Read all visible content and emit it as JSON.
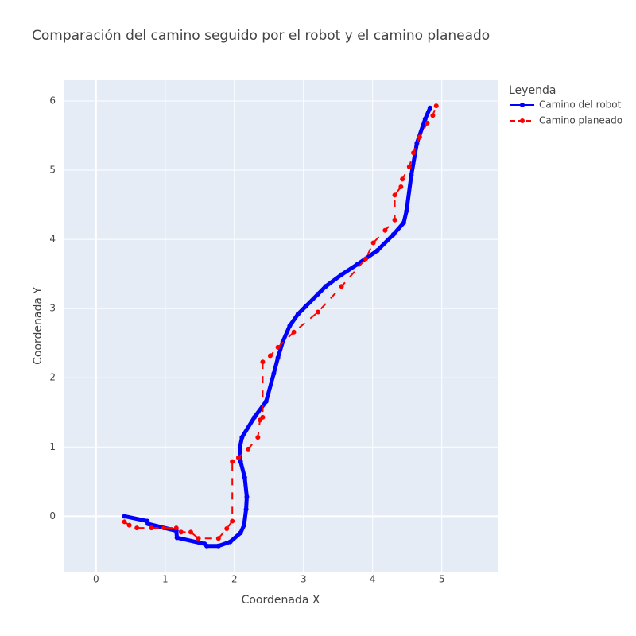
{
  "chart_data": {
    "type": "line",
    "title": "Comparación del camino seguido por el robot y el camino planeado",
    "x_label": "Coordenada X",
    "y_label": "Coordenada Y",
    "legend_title": "Leyenda",
    "legend_position": "right",
    "grid": true,
    "xlim": [
      -0.47,
      5.82
    ],
    "ylim": [
      -0.8,
      6.31
    ],
    "xticks": [
      0,
      1,
      2,
      3,
      4,
      5
    ],
    "yticks": [
      0,
      1,
      2,
      3,
      4,
      5,
      6
    ],
    "series": [
      {
        "name": "Camino del robot",
        "color": "#0000ff",
        "dash": "solid",
        "x": [
          0.41,
          0.74,
          0.75,
          1.16,
          1.17,
          1.57,
          1.6,
          1.77,
          1.94,
          2.09,
          2.14,
          2.17,
          2.18,
          2.15,
          2.09,
          2.08,
          2.11,
          2.29,
          2.46,
          2.57,
          2.63,
          2.7,
          2.8,
          2.92,
          3.03,
          3.21,
          3.32,
          3.55,
          3.78,
          4.07,
          4.3,
          4.45,
          4.49,
          4.56,
          4.64,
          4.76,
          4.83
        ],
        "values": [
          0,
          -0.07,
          -0.11,
          -0.21,
          -0.31,
          -0.4,
          -0.43,
          -0.43,
          -0.37,
          -0.24,
          -0.13,
          0.1,
          0.28,
          0.56,
          0.79,
          0.99,
          1.14,
          1.43,
          1.66,
          2.06,
          2.29,
          2.52,
          2.75,
          2.92,
          3.03,
          3.21,
          3.32,
          3.49,
          3.64,
          3.84,
          4.07,
          4.24,
          4.41,
          4.93,
          5.39,
          5.74,
          5.9
        ]
      },
      {
        "name": "Camino planeado",
        "color": "#ff0000",
        "dash": "dash",
        "x": [
          0.41,
          0.48,
          0.59,
          0.8,
          0.98,
          1.16,
          1.23,
          1.37,
          1.48,
          1.77,
          1.89,
          1.97,
          1.97,
          2.06,
          2.2,
          2.34,
          2.37,
          2.41,
          2.41,
          2.52,
          2.63,
          2.86,
          3.21,
          3.55,
          3.9,
          4.01,
          4.18,
          4.32,
          4.32,
          4.41,
          4.43,
          4.53,
          4.59,
          4.68,
          4.79,
          4.87,
          4.92
        ],
        "values": [
          -0.08,
          -0.13,
          -0.17,
          -0.17,
          -0.17,
          -0.17,
          -0.23,
          -0.23,
          -0.32,
          -0.32,
          -0.18,
          -0.07,
          0.79,
          0.85,
          0.97,
          1.14,
          1.39,
          1.43,
          2.23,
          2.32,
          2.44,
          2.66,
          2.95,
          3.32,
          3.72,
          3.95,
          4.13,
          4.28,
          4.64,
          4.76,
          4.87,
          5.05,
          5.25,
          5.48,
          5.68,
          5.79,
          5.93
        ]
      }
    ]
  }
}
